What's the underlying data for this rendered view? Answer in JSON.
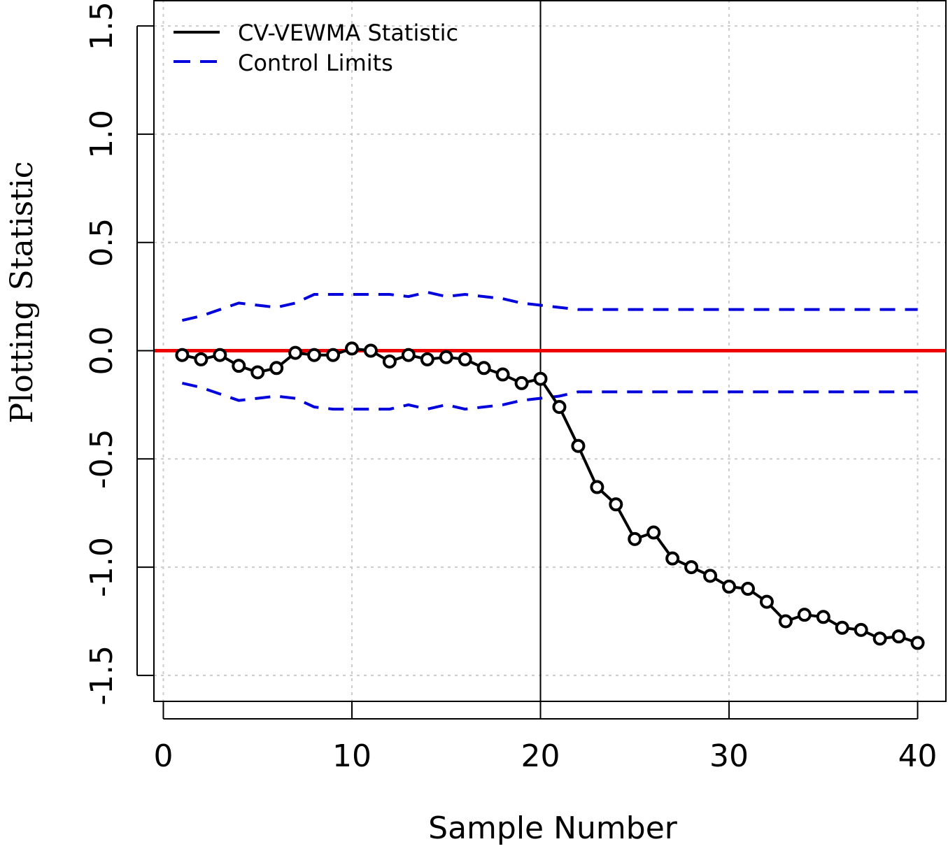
{
  "chart_data": {
    "type": "line",
    "title": "",
    "xlabel": "Sample Number",
    "ylabel": "Plotting Statistic",
    "xlim": [
      -0.5,
      41.5
    ],
    "ylim": [
      -1.62,
      1.62
    ],
    "x_ticks": [
      0,
      10,
      20,
      30,
      40
    ],
    "x_tick_labels": [
      "0",
      "10",
      "20",
      "30",
      "40"
    ],
    "y_ticks": [
      -1.5,
      -1.0,
      -0.5,
      0.0,
      0.5,
      1.0,
      1.5
    ],
    "y_tick_labels": [
      "-1.5",
      "-1.0",
      "-0.5",
      "0.0",
      "0.5",
      "1.0",
      "1.5"
    ],
    "grid": true,
    "legend_position": "top-left",
    "x": [
      1,
      2,
      3,
      4,
      5,
      6,
      7,
      8,
      9,
      10,
      11,
      12,
      13,
      14,
      15,
      16,
      17,
      18,
      19,
      20,
      21,
      22,
      23,
      24,
      25,
      26,
      27,
      28,
      29,
      30,
      31,
      32,
      33,
      34,
      35,
      36,
      37,
      38,
      39,
      40
    ],
    "series": [
      {
        "name": "CV-VEWMA Statistic",
        "style": "solid-with-circles",
        "color": "#000000",
        "values": [
          -0.02,
          -0.04,
          -0.02,
          -0.07,
          -0.1,
          -0.08,
          -0.01,
          -0.02,
          -0.02,
          0.01,
          0.0,
          -0.05,
          -0.02,
          -0.04,
          -0.03,
          -0.04,
          -0.08,
          -0.11,
          -0.15,
          -0.13,
          -0.26,
          -0.44,
          -0.63,
          -0.71,
          -0.87,
          -0.84,
          -0.96,
          -1.0,
          -1.04,
          -1.09,
          -1.1,
          -1.16,
          -1.25,
          -1.22,
          -1.23,
          -1.28,
          -1.29,
          -1.33,
          -1.32,
          -1.35
        ]
      },
      {
        "name": "Control Limits",
        "style": "dashed",
        "color": "#0000dd",
        "upper": [
          0.14,
          0.16,
          0.19,
          0.22,
          0.21,
          0.2,
          0.22,
          0.26,
          0.26,
          0.26,
          0.26,
          0.26,
          0.25,
          0.27,
          0.25,
          0.26,
          0.25,
          0.24,
          0.22,
          0.21,
          0.2,
          0.19,
          0.19,
          0.19,
          0.19,
          0.19,
          0.19,
          0.19,
          0.19,
          0.19,
          0.19,
          0.19,
          0.19,
          0.19,
          0.19,
          0.19,
          0.19,
          0.19,
          0.19,
          0.19
        ],
        "lower": [
          -0.15,
          -0.17,
          -0.2,
          -0.23,
          -0.22,
          -0.21,
          -0.22,
          -0.26,
          -0.27,
          -0.27,
          -0.27,
          -0.27,
          -0.25,
          -0.27,
          -0.25,
          -0.27,
          -0.26,
          -0.25,
          -0.23,
          -0.22,
          -0.21,
          -0.19,
          -0.19,
          -0.19,
          -0.19,
          -0.19,
          -0.19,
          -0.19,
          -0.19,
          -0.19,
          -0.19,
          -0.19,
          -0.19,
          -0.19,
          -0.19,
          -0.19,
          -0.19,
          -0.19,
          -0.19,
          -0.19
        ]
      }
    ],
    "reference_lines": {
      "horizontal_value": 0.0,
      "horizontal_color": "#ee0000",
      "vertical_value": 20
    }
  }
}
